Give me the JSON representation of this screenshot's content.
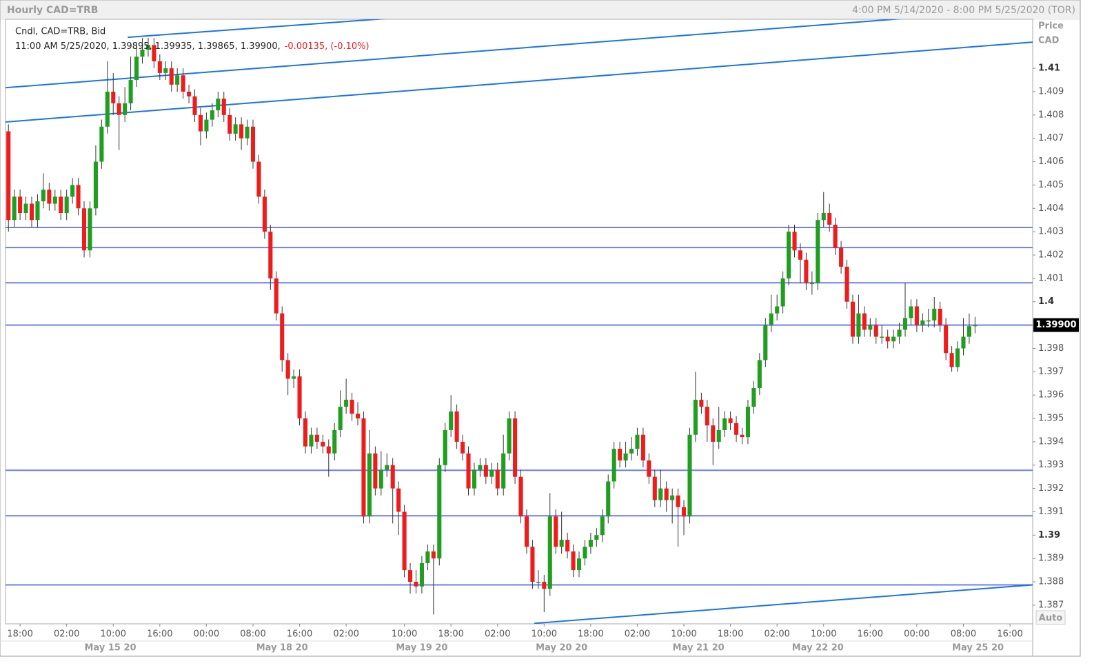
{
  "chart_data": {
    "type": "candlestick",
    "title": "Hourly CAD=TRB",
    "subtitle": "4:00 PM 5/14/2020 - 8:00 PM 5/25/2020 (TOR)",
    "series_label": "Cndl, CAD=TRB, Bid",
    "quote": "11:00 AM 5/25/2020, 1.39895, 1.39935, 1.39865, 1.39900,",
    "change": "-0.00135, (-0.10%)",
    "y_axis_label": "Price",
    "currency": "CAD",
    "scale_button": "Auto",
    "up_color": "#1f9e1f",
    "down_color": "#ee1c1c",
    "open": [
      1.4073,
      1.4035,
      1.4045,
      1.4038,
      1.4042,
      1.4035,
      1.4043,
      1.4048,
      1.4042,
      1.4045,
      1.4038,
      1.4045,
      1.405,
      1.404,
      1.4022,
      1.404,
      1.406,
      1.4075,
      1.409,
      1.4085,
      1.408,
      1.4085,
      1.4095,
      1.4105,
      1.4108,
      1.411,
      1.4103,
      1.4098,
      1.41,
      1.4093,
      1.4097,
      1.409,
      1.4088,
      1.408,
      1.4073,
      1.4078,
      1.4082,
      1.4087,
      1.408,
      1.4072,
      1.4076,
      1.407,
      1.4075,
      1.406,
      1.4045,
      1.403,
      1.401,
      1.3995,
      1.3975,
      1.3967,
      1.3968,
      1.395,
      1.3938,
      1.3943,
      1.394,
      1.3938,
      1.3935,
      1.3945,
      1.3955,
      1.3958,
      1.3952,
      1.395,
      1.3908,
      1.3935,
      1.392,
      1.3928,
      1.393,
      1.392,
      1.391,
      1.3885,
      1.388,
      1.3878,
      1.3888,
      1.3893,
      1.389,
      1.393,
      1.3945,
      1.3953,
      1.394,
      1.3935,
      1.392,
      1.3928,
      1.393,
      1.3925,
      1.3928,
      1.392,
      1.3935,
      1.395,
      1.3925,
      1.3908,
      1.3895,
      1.388,
      1.388,
      1.3877,
      1.3908,
      1.3895,
      1.3898,
      1.3893,
      1.3885,
      1.389,
      1.3895,
      1.3898,
      1.39,
      1.3908,
      1.3923,
      1.3937,
      1.3932,
      1.3935,
      1.3937,
      1.3943,
      1.3932,
      1.3925,
      1.3915,
      1.392,
      1.3915,
      1.3917,
      1.3912,
      1.3908,
      1.3943,
      1.3958,
      1.3955,
      1.3947,
      1.394,
      1.3945,
      1.395,
      1.3948,
      1.3943,
      1.3942,
      1.3955,
      1.3963,
      1.3975,
      1.399,
      1.3995,
      1.3998,
      1.401,
      1.403,
      1.4022,
      1.4018,
      1.4008,
      1.4008,
      1.4035,
      1.4038,
      1.4033,
      1.4023,
      1.4015,
      1.4,
      1.3985,
      1.3995,
      1.3988,
      1.399,
      1.3985,
      1.3985,
      1.3983,
      1.3985,
      1.3988,
      1.3993,
      1.3998,
      1.399,
      1.3992,
      1.3992,
      1.3997,
      1.399,
      1.3978,
      1.3972,
      1.398,
      1.3985,
      1.39895
    ],
    "high": [
      1.4076,
      1.4048,
      1.4048,
      1.4045,
      1.4045,
      1.4046,
      1.4055,
      1.4051,
      1.4048,
      1.4048,
      1.4048,
      1.4053,
      1.4053,
      1.4043,
      1.4043,
      1.4067,
      1.4078,
      1.4103,
      1.4098,
      1.4088,
      1.4092,
      1.4105,
      1.411,
      1.4113,
      1.4113,
      1.4113,
      1.4106,
      1.4103,
      1.4103,
      1.41,
      1.41,
      1.4093,
      1.4091,
      1.4083,
      1.4081,
      1.4085,
      1.409,
      1.409,
      1.4083,
      1.4079,
      1.4079,
      1.4078,
      1.4078,
      1.4063,
      1.4048,
      1.4033,
      1.4013,
      1.3998,
      1.3978,
      1.3971,
      1.3971,
      1.3953,
      1.3946,
      1.3946,
      1.3943,
      1.3941,
      1.3948,
      1.3962,
      1.3967,
      1.3961,
      1.3957,
      1.3953,
      1.3945,
      1.3938,
      1.3936,
      1.3935,
      1.3933,
      1.3923,
      1.3913,
      1.3888,
      1.3885,
      1.3891,
      1.3896,
      1.3896,
      1.3933,
      1.3948,
      1.396,
      1.3956,
      1.3943,
      1.3938,
      1.3931,
      1.3933,
      1.3933,
      1.3931,
      1.3931,
      1.3943,
      1.3953,
      1.3953,
      1.3928,
      1.3911,
      1.3898,
      1.3885,
      1.3883,
      1.3918,
      1.3911,
      1.391,
      1.3901,
      1.3896,
      1.3893,
      1.3898,
      1.3901,
      1.3903,
      1.3911,
      1.3926,
      1.394,
      1.394,
      1.394,
      1.3942,
      1.3946,
      1.3946,
      1.3935,
      1.3928,
      1.3928,
      1.3923,
      1.392,
      1.392,
      1.3915,
      1.3946,
      1.397,
      1.3961,
      1.3958,
      1.395,
      1.3955,
      1.3953,
      1.3953,
      1.3951,
      1.3946,
      1.3958,
      1.3966,
      1.3978,
      1.3993,
      1.4003,
      1.4003,
      1.4013,
      1.4033,
      1.4033,
      1.4025,
      1.4021,
      1.4013,
      1.4038,
      1.4047,
      1.4042,
      1.4036,
      1.4026,
      1.4018,
      1.4003,
      1.4003,
      1.3998,
      1.3993,
      1.3993,
      1.399,
      1.3988,
      1.3988,
      1.3991,
      1.4008,
      1.4001,
      1.4001,
      1.3995,
      1.3997,
      1.4002,
      1.4,
      1.3993,
      1.3981,
      1.3983,
      1.3993,
      1.3995,
      1.39935
    ],
    "low": [
      1.403,
      1.4032,
      1.4035,
      1.4035,
      1.4032,
      1.4032,
      1.404,
      1.4039,
      1.4039,
      1.4035,
      1.4035,
      1.4042,
      1.4037,
      1.4019,
      1.4019,
      1.4037,
      1.4057,
      1.4072,
      1.408,
      1.4065,
      1.4077,
      1.4082,
      1.4092,
      1.4102,
      1.4105,
      1.41,
      1.4095,
      1.4095,
      1.409,
      1.409,
      1.4087,
      1.4085,
      1.4077,
      1.4067,
      1.407,
      1.4075,
      1.4079,
      1.4077,
      1.4069,
      1.4069,
      1.4065,
      1.4067,
      1.4057,
      1.4042,
      1.4027,
      1.4005,
      1.3992,
      1.397,
      1.396,
      1.3963,
      1.3947,
      1.3935,
      1.3935,
      1.3937,
      1.3935,
      1.3925,
      1.3932,
      1.3942,
      1.3952,
      1.3949,
      1.3947,
      1.3905,
      1.3905,
      1.3917,
      1.3917,
      1.3925,
      1.3905,
      1.39,
      1.3882,
      1.3875,
      1.3875,
      1.3875,
      1.3885,
      1.3866,
      1.3887,
      1.3927,
      1.3942,
      1.3937,
      1.3932,
      1.3917,
      1.3917,
      1.3925,
      1.3922,
      1.3922,
      1.3917,
      1.3917,
      1.3932,
      1.3922,
      1.3905,
      1.3892,
      1.3877,
      1.3877,
      1.3867,
      1.3874,
      1.3892,
      1.3892,
      1.389,
      1.3882,
      1.3882,
      1.3887,
      1.3892,
      1.3895,
      1.3897,
      1.3905,
      1.392,
      1.3929,
      1.3929,
      1.3932,
      1.3934,
      1.3929,
      1.3922,
      1.3912,
      1.3912,
      1.391,
      1.3905,
      1.3895,
      1.39,
      1.3905,
      1.394,
      1.3952,
      1.394,
      1.393,
      1.3937,
      1.3942,
      1.3945,
      1.394,
      1.3939,
      1.3939,
      1.3952,
      1.396,
      1.3972,
      1.3987,
      1.3992,
      1.3995,
      1.4007,
      1.4019,
      1.4008,
      1.4005,
      1.4003,
      1.4005,
      1.4032,
      1.403,
      1.402,
      1.4012,
      1.3997,
      1.3982,
      1.3982,
      1.3985,
      1.3985,
      1.3982,
      1.3982,
      1.398,
      1.398,
      1.3982,
      1.3985,
      1.399,
      1.3987,
      1.3987,
      1.3989,
      1.3989,
      1.3987,
      1.3975,
      1.397,
      1.397,
      1.3977,
      1.3982,
      1.39865
    ],
    "close": [
      1.4035,
      1.4045,
      1.4038,
      1.4042,
      1.4035,
      1.4043,
      1.4048,
      1.4042,
      1.4045,
      1.4038,
      1.4045,
      1.405,
      1.404,
      1.4022,
      1.404,
      1.406,
      1.4075,
      1.409,
      1.4085,
      1.408,
      1.4085,
      1.4095,
      1.4105,
      1.4108,
      1.411,
      1.4103,
      1.4098,
      1.41,
      1.4093,
      1.4097,
      1.409,
      1.4088,
      1.408,
      1.4073,
      1.4078,
      1.4082,
      1.4087,
      1.408,
      1.4072,
      1.4076,
      1.407,
      1.4075,
      1.406,
      1.4045,
      1.403,
      1.401,
      1.3995,
      1.3975,
      1.3967,
      1.3968,
      1.395,
      1.3938,
      1.3943,
      1.394,
      1.3938,
      1.3935,
      1.3945,
      1.3955,
      1.3958,
      1.3952,
      1.395,
      1.3908,
      1.3935,
      1.392,
      1.3928,
      1.393,
      1.392,
      1.391,
      1.3885,
      1.388,
      1.3878,
      1.3888,
      1.3893,
      1.389,
      1.393,
      1.3945,
      1.3953,
      1.394,
      1.3935,
      1.392,
      1.3928,
      1.393,
      1.3925,
      1.3928,
      1.392,
      1.3935,
      1.395,
      1.3925,
      1.3908,
      1.3895,
      1.388,
      1.388,
      1.3877,
      1.3908,
      1.3895,
      1.3898,
      1.3893,
      1.3885,
      1.389,
      1.3895,
      1.3898,
      1.39,
      1.3908,
      1.3923,
      1.3937,
      1.3932,
      1.3935,
      1.3937,
      1.3943,
      1.3932,
      1.3925,
      1.3915,
      1.392,
      1.3915,
      1.3917,
      1.3912,
      1.3908,
      1.3943,
      1.3958,
      1.3955,
      1.3947,
      1.394,
      1.3945,
      1.395,
      1.3948,
      1.3943,
      1.3942,
      1.3955,
      1.3963,
      1.3975,
      1.399,
      1.3995,
      1.3998,
      1.401,
      1.403,
      1.4022,
      1.4018,
      1.4008,
      1.4008,
      1.4035,
      1.4038,
      1.4033,
      1.4023,
      1.4015,
      1.4,
      1.3985,
      1.3995,
      1.3988,
      1.399,
      1.3985,
      1.3985,
      1.3983,
      1.3985,
      1.3988,
      1.3993,
      1.3998,
      1.399,
      1.3992,
      1.3992,
      1.3997,
      1.399,
      1.3978,
      1.3972,
      1.398,
      1.3985,
      1.39895,
      1.399
    ],
    "ylim": [
      1.3862,
      1.4121
    ],
    "yticks": [
      1.41,
      1.409,
      1.408,
      1.407,
      1.406,
      1.405,
      1.404,
      1.403,
      1.402,
      1.401,
      1.4,
      1.398,
      1.397,
      1.396,
      1.395,
      1.394,
      1.393,
      1.392,
      1.391,
      1.39,
      1.389,
      1.388,
      1.387
    ],
    "last_price": {
      "value": 1.399,
      "label": "1.39900"
    },
    "xlim": [
      -0.5,
      175.9
    ],
    "xticks": [
      {
        "value": 2,
        "label": "18:00"
      },
      {
        "value": 10,
        "label": "02:00"
      },
      {
        "value": 18,
        "label": "10:00"
      },
      {
        "value": 26,
        "label": "16:00"
      },
      {
        "value": 34,
        "label": "00:00"
      },
      {
        "value": 42,
        "label": "08:00"
      },
      {
        "value": 50,
        "label": "16:00"
      },
      {
        "value": 58,
        "label": "02:00"
      },
      {
        "value": 68,
        "label": "10:00"
      },
      {
        "value": 76,
        "label": "18:00"
      },
      {
        "value": 84,
        "label": "02:00"
      },
      {
        "value": 92,
        "label": "10:00"
      },
      {
        "value": 100,
        "label": "18:00"
      },
      {
        "value": 108,
        "label": "02:00"
      },
      {
        "value": 116,
        "label": "10:00"
      },
      {
        "value": 124,
        "label": "18:00"
      },
      {
        "value": 132,
        "label": "02:00"
      },
      {
        "value": 140,
        "label": "10:00"
      },
      {
        "value": 148,
        "label": "16:00"
      },
      {
        "value": 156,
        "label": "00:00"
      },
      {
        "value": 164,
        "label": "08:00"
      },
      {
        "value": 172,
        "label": "16:00"
      }
    ],
    "date_ticks": [
      {
        "value": 17.5,
        "label": "May 15 20"
      },
      {
        "value": 47,
        "label": "May 18 20"
      },
      {
        "value": 71,
        "label": "May 19 20"
      },
      {
        "value": 95,
        "label": "May 20 20"
      },
      {
        "value": 118.5,
        "label": "May 21 20"
      },
      {
        "value": 139,
        "label": "May 22 20"
      },
      {
        "value": 166.5,
        "label": "May 25 20"
      }
    ],
    "hlines": {
      "color": "#6f7ef2",
      "values": [
        1.40318,
        1.40232,
        1.40081,
        1.399,
        1.39278,
        1.39083,
        1.38787
      ]
    },
    "trend_color": "#1a73e8",
    "trendlines": [
      {
        "x": [
          20.5,
          64.9
        ],
        "y": [
          1.41133,
          1.41213
        ]
      },
      {
        "x": [
          -0.5,
          153.6
        ],
        "y": [
          1.40917,
          1.41213
        ]
      },
      {
        "x": [
          -0.5,
          175.9
        ],
        "y": [
          1.4077,
          1.41112
        ]
      },
      {
        "x": [
          90.3,
          175.9
        ],
        "y": [
          1.38622,
          1.38787
        ]
      }
    ]
  }
}
